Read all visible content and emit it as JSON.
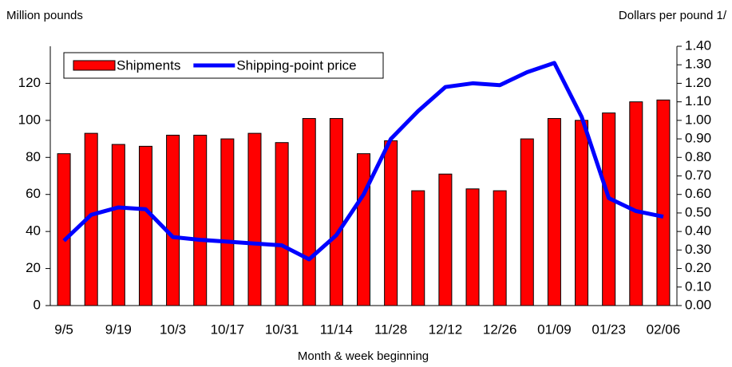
{
  "chart_data": {
    "type": "bar-line",
    "y_label": "Million pounds",
    "y2_label": "Dollars per pound 1/",
    "x_label": "Month & week beginning",
    "categories": [
      "9/5",
      null,
      "9/19",
      null,
      "10/3",
      null,
      "10/17",
      null,
      "10/31",
      null,
      "11/14",
      null,
      "11/28",
      null,
      "12/12",
      null,
      "12/26",
      null,
      "01/09",
      null,
      "01/23",
      null,
      "02/06"
    ],
    "series": [
      {
        "name": "Shipments",
        "type": "bar",
        "color": "#ff0000",
        "values": [
          82,
          93,
          87,
          86,
          92,
          92,
          90,
          93,
          88,
          101,
          101,
          82,
          89,
          62,
          71,
          63,
          62,
          90,
          101,
          100,
          104,
          110,
          111
        ]
      },
      {
        "name": "Shipping-point price",
        "type": "line",
        "axis": "y2",
        "color": "#0000ff",
        "values": [
          0.35,
          0.49,
          0.53,
          0.52,
          0.37,
          0.355,
          0.345,
          0.335,
          0.325,
          0.25,
          0.38,
          0.6,
          0.9,
          1.05,
          1.18,
          1.2,
          1.19,
          1.26,
          1.31,
          1.02,
          0.58,
          0.51,
          0.48
        ]
      }
    ],
    "ylim": [
      0,
      140
    ],
    "yticks": [
      0,
      20,
      40,
      60,
      80,
      100,
      120
    ],
    "y2lim": [
      0,
      1.4
    ],
    "y2ticks": [
      {
        "value": 0,
        "label": "0.00"
      },
      {
        "value": 0.1,
        "label": "0.10"
      },
      {
        "value": 0.2,
        "label": "0.20"
      },
      {
        "value": 0.3,
        "label": "0.30"
      },
      {
        "value": 0.4,
        "label": "0.40"
      },
      {
        "value": 0.5,
        "label": "0.50"
      },
      {
        "value": 0.6,
        "label": "0.60"
      },
      {
        "value": 0.7,
        "label": "0.70"
      },
      {
        "value": 0.8,
        "label": "0.80"
      },
      {
        "value": 0.9,
        "label": "0.90"
      },
      {
        "value": 1,
        "label": "1.00"
      },
      {
        "value": 1.1,
        "label": "1.10"
      },
      {
        "value": 1.2,
        "label": "1.20"
      },
      {
        "value": 1.3,
        "label": "1.30"
      },
      {
        "value": 1.4,
        "label": "1.40"
      }
    ],
    "legend": "top-left"
  }
}
